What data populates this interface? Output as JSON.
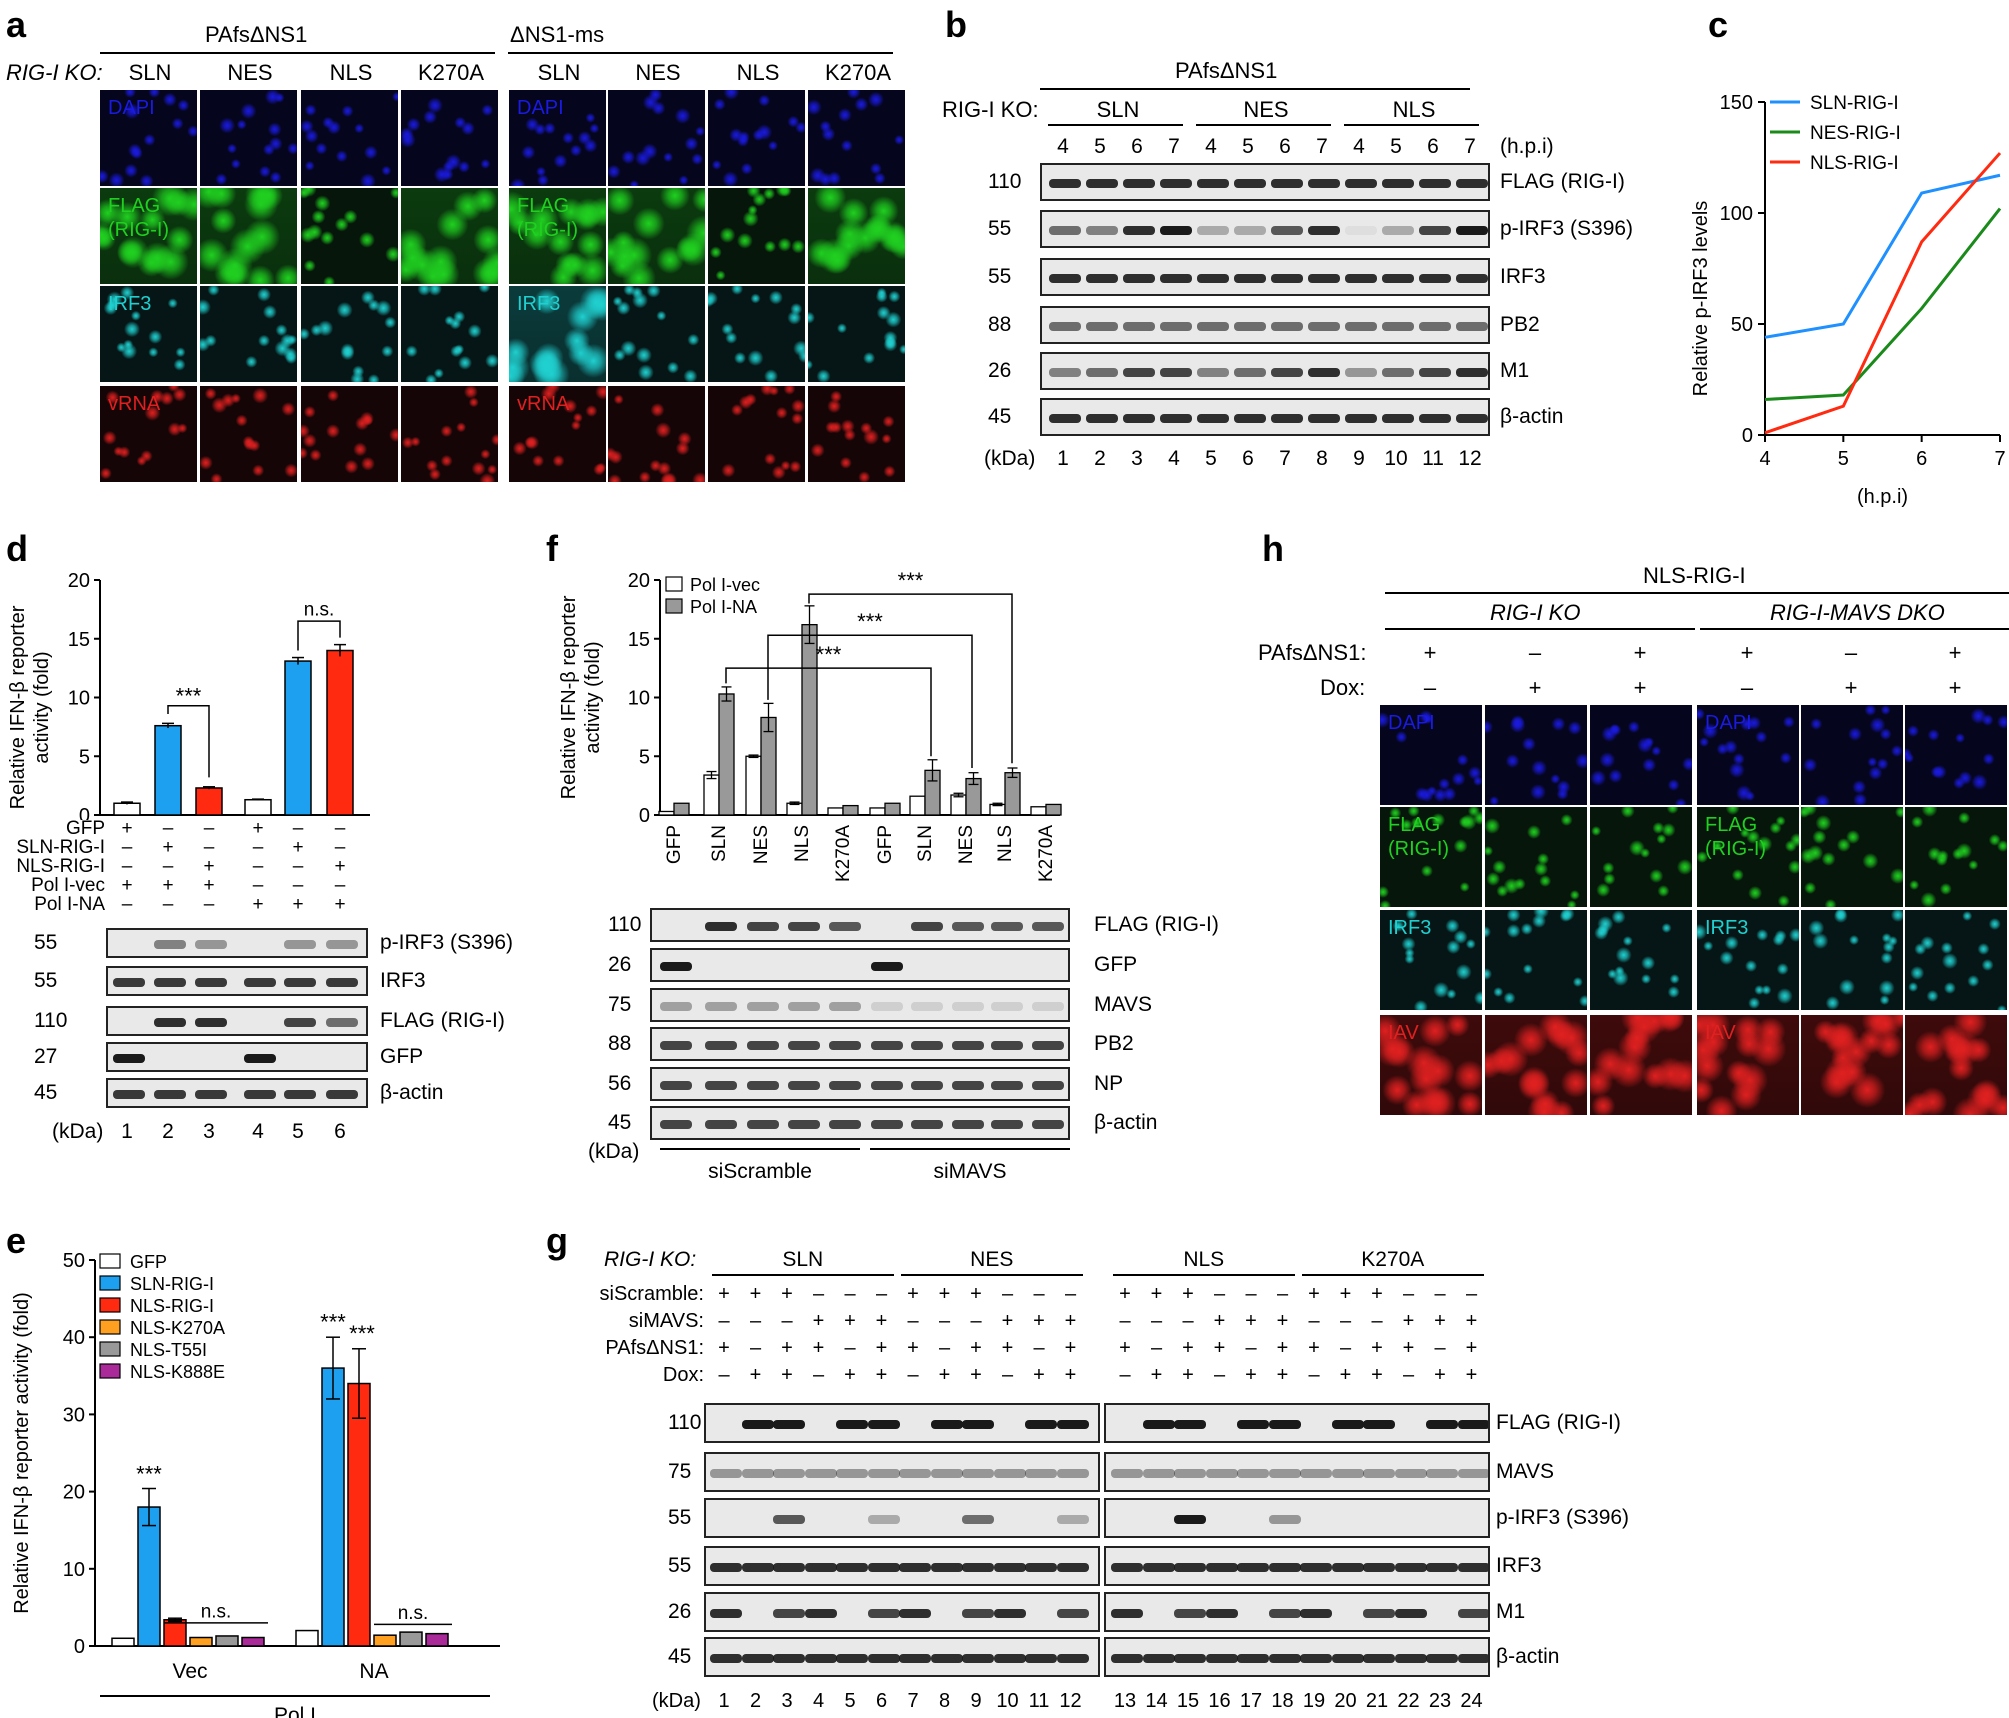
{
  "panels": {
    "a": {
      "letter": "a",
      "group_left": "PAfsΔNS1",
      "group_right": "ΔNS1-ms",
      "ko_label": "RIG-I KO:",
      "columns": [
        "SLN",
        "NES",
        "NLS",
        "K270A",
        "SLN",
        "NES",
        "NLS",
        "K270A"
      ],
      "rows": [
        "DAPI",
        "FLAG\n(RIG-I)",
        "IRF3",
        "vRNA"
      ]
    },
    "b": {
      "letter": "b",
      "title": "PAfsΔNS1",
      "ko_label": "RIG-I KO:",
      "groups": [
        "SLN",
        "NES",
        "NLS"
      ],
      "hpi": [
        "4",
        "5",
        "6",
        "7",
        "4",
        "5",
        "6",
        "7",
        "4",
        "5",
        "6",
        "7"
      ],
      "hpi_unit": "(h.p.i)",
      "kda_label": "(kDa)",
      "lanes": [
        "1",
        "2",
        "3",
        "4",
        "5",
        "6",
        "7",
        "8",
        "9",
        "10",
        "11",
        "12"
      ],
      "blots": [
        {
          "kda": "110",
          "name": "FLAG (RIG-I)"
        },
        {
          "kda": "55",
          "name": "p-IRF3 (S396)"
        },
        {
          "kda": "55",
          "name": "IRF3"
        },
        {
          "kda": "88",
          "name": "PB2"
        },
        {
          "kda": "26",
          "name": "M1"
        },
        {
          "kda": "45",
          "name": "β-actin"
        }
      ]
    },
    "c": {
      "letter": "c"
    },
    "d": {
      "letter": "d",
      "ylabel": "Relative IFN-β reporter\nactivity (fold)",
      "sig": "***",
      "ns": "n.s.",
      "cond_rows": [
        {
          "name": "GFP",
          "signs": [
            "+",
            "–",
            "–",
            "+",
            "–",
            "–"
          ]
        },
        {
          "name": "SLN-RIG-I",
          "signs": [
            "–",
            "+",
            "–",
            "–",
            "+",
            "–"
          ]
        },
        {
          "name": "NLS-RIG-I",
          "signs": [
            "–",
            "–",
            "+",
            "–",
            "–",
            "+"
          ]
        },
        {
          "name": "Pol I-vec",
          "signs": [
            "+",
            "+",
            "+",
            "–",
            "–",
            "–"
          ]
        },
        {
          "name": "Pol I-NA",
          "signs": [
            "–",
            "–",
            "–",
            "+",
            "+",
            "+"
          ]
        }
      ],
      "kda_label": "(kDa)",
      "lanes": [
        "1",
        "2",
        "3",
        "4",
        "5",
        "6"
      ],
      "blots": [
        {
          "kda": "55",
          "name": "p-IRF3 (S396)"
        },
        {
          "kda": "55",
          "name": "IRF3"
        },
        {
          "kda": "110",
          "name": "FLAG (RIG-I)"
        },
        {
          "kda": "27",
          "name": "GFP"
        },
        {
          "kda": "45",
          "name": "β-actin"
        }
      ]
    },
    "e": {
      "letter": "e",
      "ylabel": "Relative IFN-β reporter activity (fold)",
      "groups": [
        "Vec",
        "NA"
      ],
      "xlabel": "Pol I",
      "sig": "***",
      "ns": "n.s."
    },
    "f": {
      "letter": "f",
      "ylabel": "Relative IFN-β reporter\nactivity (fold)",
      "sig": "***",
      "kda_label": "(kDa)",
      "groups": [
        "siScramble",
        "siMAVS"
      ],
      "blots": [
        {
          "kda": "110",
          "name": "FLAG (RIG-I)"
        },
        {
          "kda": "26",
          "name": "GFP"
        },
        {
          "kda": "75",
          "name": "MAVS"
        },
        {
          "kda": "88",
          "name": "PB2"
        },
        {
          "kda": "56",
          "name": "NP"
        },
        {
          "kda": "45",
          "name": "β-actin"
        }
      ]
    },
    "g": {
      "letter": "g",
      "ko_label": "RIG-I KO:",
      "groups": [
        "SLN",
        "NES",
        "NLS",
        "K270A"
      ],
      "cond_rows": [
        {
          "name": "siScramble:",
          "signs": [
            "+",
            "+",
            "+",
            "–",
            "–",
            "–"
          ]
        },
        {
          "name": "siMAVS:",
          "signs": [
            "–",
            "–",
            "–",
            "+",
            "+",
            "+"
          ]
        },
        {
          "name": "PAfsΔNS1:",
          "signs": [
            "+",
            "–",
            "+",
            "+",
            "–",
            "+"
          ]
        },
        {
          "name": "Dox:",
          "signs": [
            "–",
            "+",
            "+",
            "–",
            "+",
            "+"
          ]
        }
      ],
      "kda_label": "(kDa)",
      "lanes": [
        "1",
        "2",
        "3",
        "4",
        "5",
        "6",
        "7",
        "8",
        "9",
        "10",
        "11",
        "12",
        "13",
        "14",
        "15",
        "16",
        "17",
        "18",
        "19",
        "20",
        "21",
        "22",
        "23",
        "24"
      ],
      "blots": [
        {
          "kda": "110",
          "name": "FLAG (RIG-I)"
        },
        {
          "kda": "75",
          "name": "MAVS"
        },
        {
          "kda": "55",
          "name": "p-IRF3 (S396)"
        },
        {
          "kda": "55",
          "name": "IRF3"
        },
        {
          "kda": "26",
          "name": "M1"
        },
        {
          "kda": "45",
          "name": "β-actin"
        }
      ]
    },
    "h": {
      "letter": "h",
      "title": "NLS-RIG-I",
      "group_left": "RIG-I KO",
      "group_right": "RIG-I-MAVS DKO",
      "pafs_label": "PAfsΔNS1:",
      "dox_label": "Dox:",
      "pafs": [
        "+",
        "–",
        "+",
        "+",
        "–",
        "+"
      ],
      "dox": [
        "–",
        "+",
        "+",
        "–",
        "+",
        "+"
      ],
      "rows": [
        "DAPI",
        "FLAG\n(RIG-I)",
        "IRF3",
        "IAV"
      ]
    }
  },
  "chart_data": [
    {
      "id": "c",
      "type": "line",
      "xlabel": "(h.p.i)",
      "ylabel": "Relative p-IRF3 levels",
      "x": [
        4,
        5,
        6,
        7
      ],
      "xlim": [
        4,
        7
      ],
      "ylim": [
        0,
        150
      ],
      "yticks": [
        0,
        50,
        100,
        150
      ],
      "series": [
        {
          "name": "SLN-RIG-I",
          "color": "#1e90ff",
          "values": [
            44,
            50,
            109,
            117
          ]
        },
        {
          "name": "NES-RIG-I",
          "color": "#1a8a1a",
          "values": [
            16,
            18,
            57,
            102
          ]
        },
        {
          "name": "NLS-RIG-I",
          "color": "#ff2a10",
          "values": [
            1,
            13,
            87,
            127
          ]
        }
      ]
    },
    {
      "id": "d",
      "type": "bar",
      "ylim": [
        0,
        20
      ],
      "yticks": [
        0,
        5,
        10,
        15,
        20
      ],
      "values": [
        1.0,
        7.6,
        2.3,
        1.3,
        13.1,
        14.0
      ],
      "errors": [
        0.1,
        0.2,
        0.1,
        0.05,
        0.3,
        0.5
      ],
      "colors": [
        "#ffffff",
        "#1ea0f0",
        "#ff2a10",
        "#ffffff",
        "#1ea0f0",
        "#ff2a10"
      ]
    },
    {
      "id": "e",
      "type": "bar",
      "ylim": [
        0,
        50
      ],
      "yticks": [
        0,
        10,
        20,
        30,
        40,
        50
      ],
      "series": [
        {
          "name": "GFP",
          "color": "#ffffff",
          "values": [
            1.0,
            2.0
          ],
          "errors": [
            0,
            0
          ]
        },
        {
          "name": "SLN-RIG-I",
          "color": "#1ea0f0",
          "values": [
            18.0,
            36.0
          ],
          "errors": [
            2.4,
            4.0
          ]
        },
        {
          "name": "NLS-RIG-I",
          "color": "#ff2a10",
          "values": [
            3.4,
            34.0
          ],
          "errors": [
            0.2,
            4.5
          ]
        },
        {
          "name": "NLS-K270A",
          "color": "#ffa020",
          "values": [
            1.1,
            1.4
          ],
          "errors": [
            0,
            0
          ]
        },
        {
          "name": "NLS-T55I",
          "color": "#999999",
          "values": [
            1.3,
            1.8
          ],
          "errors": [
            0,
            0
          ]
        },
        {
          "name": "NLS-K888E",
          "color": "#aa2a9a",
          "values": [
            1.1,
            1.6
          ],
          "errors": [
            0,
            0
          ]
        }
      ]
    },
    {
      "id": "f",
      "type": "bar",
      "ylim": [
        0,
        20
      ],
      "yticks": [
        0,
        5,
        10,
        15,
        20
      ],
      "categories": [
        "GFP",
        "SLN",
        "NES",
        "NLS",
        "K270A",
        "GFP",
        "SLN",
        "NES",
        "NLS",
        "K270A"
      ],
      "series": [
        {
          "name": "Pol I-vec",
          "color": "#ffffff",
          "values": [
            0.3,
            3.4,
            5.0,
            1.0,
            0.6,
            0.6,
            1.6,
            1.7,
            0.9,
            0.7
          ],
          "errors": [
            0,
            0.3,
            0.1,
            0.1,
            0,
            0,
            0,
            0.15,
            0.1,
            0
          ]
        },
        {
          "name": "Pol I-NA",
          "color": "#999999",
          "values": [
            1.0,
            10.3,
            8.3,
            16.2,
            0.8,
            1.0,
            3.8,
            3.1,
            3.6,
            0.9
          ],
          "errors": [
            0,
            0.6,
            1.2,
            1.6,
            0,
            0,
            0.9,
            0.5,
            0.4,
            0
          ]
        }
      ]
    }
  ]
}
